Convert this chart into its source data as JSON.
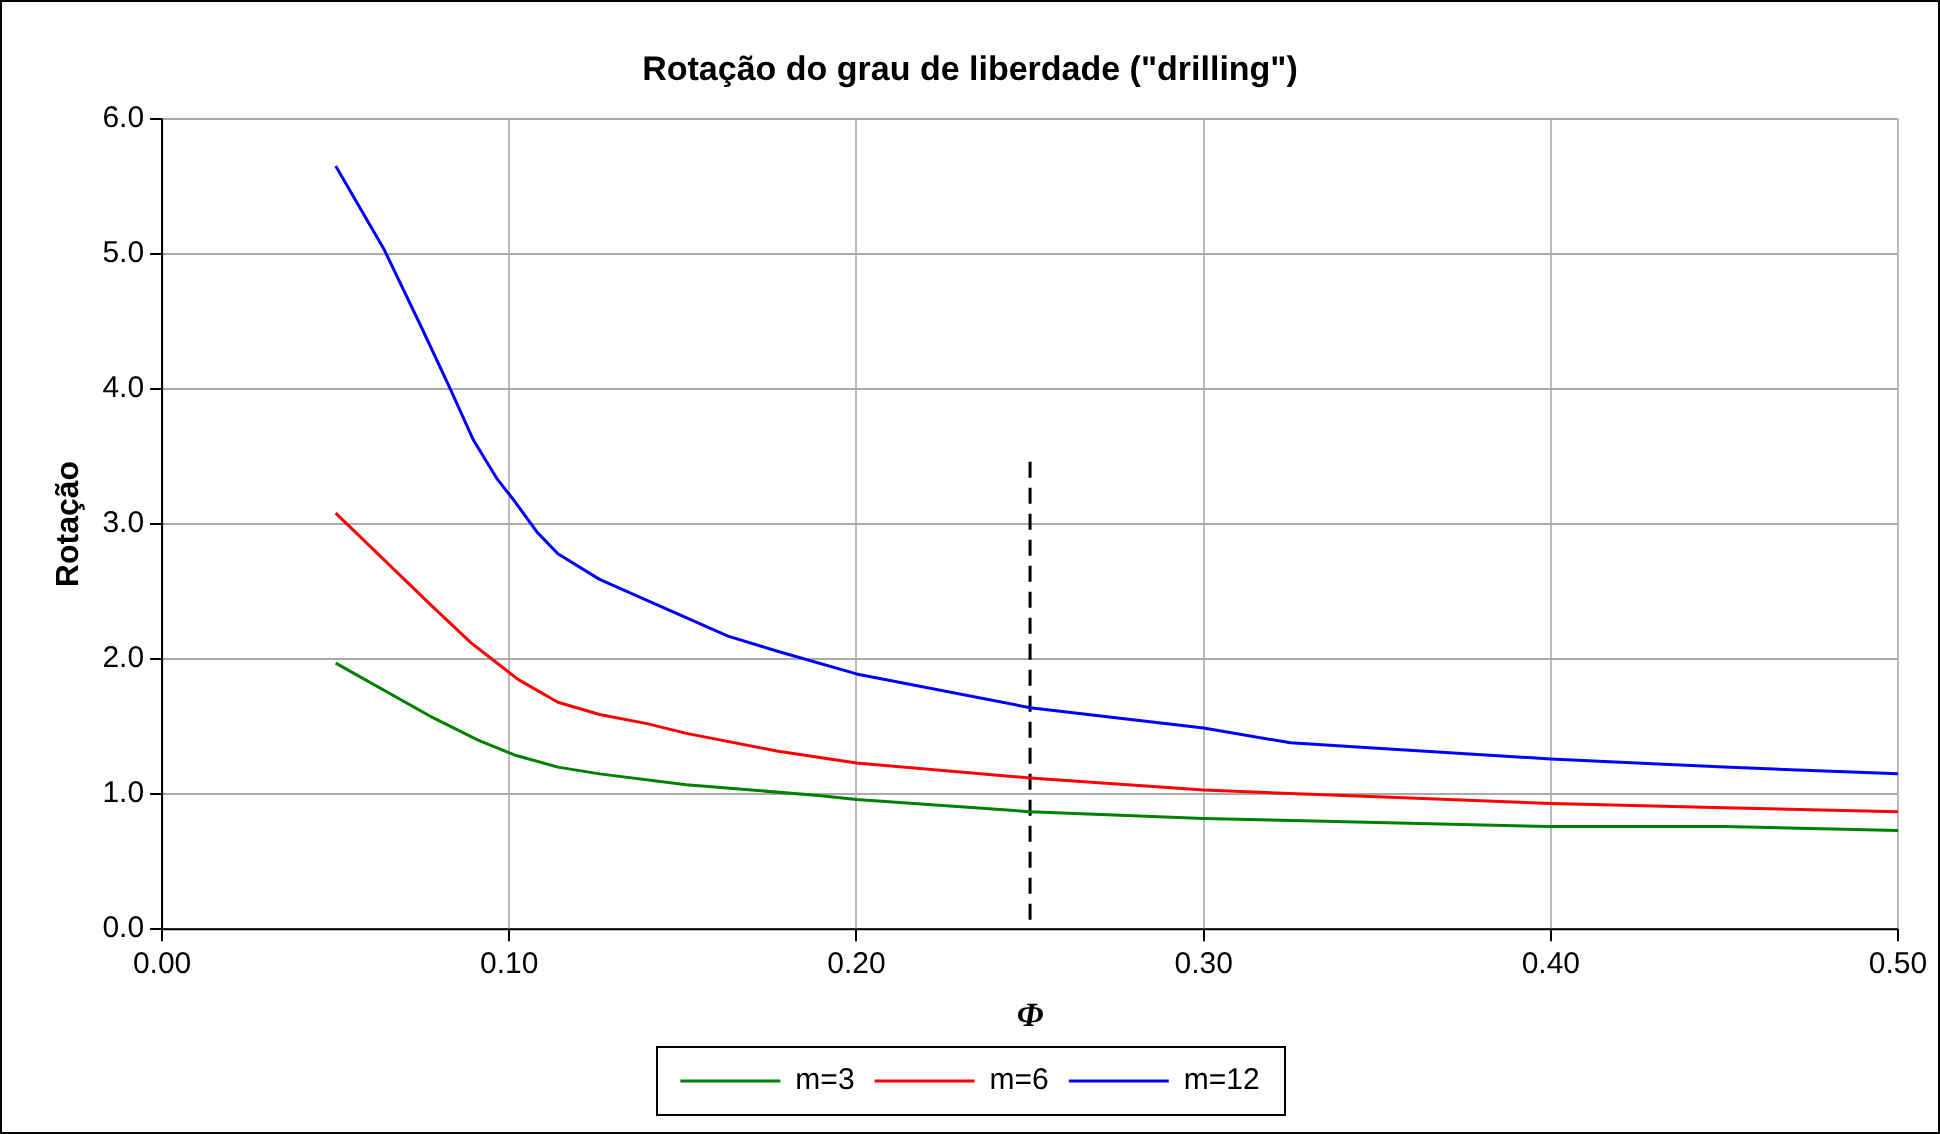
{
  "chart_data": {
    "type": "line",
    "title": "Rotação do grau de liberdade (\"drilling\")",
    "xlabel": "Φ",
    "ylabel": "Rotação",
    "xlim": [
      0,
      0.5
    ],
    "xticks": [
      {
        "value": 0,
        "label": "0.00"
      },
      {
        "value": 0.1,
        "label": "0.10"
      },
      {
        "value": 0.2,
        "label": "0.20"
      },
      {
        "value": 0.3,
        "label": "0.30"
      },
      {
        "value": 0.4,
        "label": "0.40"
      },
      {
        "value": 0.5,
        "label": "0.50"
      }
    ],
    "ylim": [
      0,
      6
    ],
    "yticks": [
      {
        "value": 0,
        "label": "0.0"
      },
      {
        "value": 1,
        "label": "1.0"
      },
      {
        "value": 2,
        "label": "2.0"
      },
      {
        "value": 3,
        "label": "3.0"
      },
      {
        "value": 4,
        "label": "4.0"
      },
      {
        "value": 5,
        "label": "5.0"
      },
      {
        "value": 6,
        "label": "6.0"
      }
    ],
    "grid": true,
    "legend": "bottom",
    "marker": "none",
    "line_style": "solid",
    "series": [
      {
        "name": "m=3",
        "color": "#008000",
        "x": [
          0.05,
          0.077,
          0.091,
          0.1015,
          0.114,
          0.126,
          0.151,
          0.189,
          0.2,
          0.25,
          0.3,
          0.35,
          0.4,
          0.45,
          0.5
        ],
        "values": [
          1.97,
          1.58,
          1.4,
          1.29,
          1.2,
          1.15,
          1.07,
          0.99,
          0.96,
          0.87,
          0.82,
          0.79,
          0.76,
          0.76,
          0.73
        ]
      },
      {
        "name": "m=6",
        "color": "#ff0000",
        "x": [
          0.05,
          0.077,
          0.089,
          0.097,
          0.1025,
          0.114,
          0.126,
          0.14,
          0.151,
          0.177,
          0.2,
          0.25,
          0.3,
          0.35,
          0.4,
          0.45,
          0.5
        ],
        "values": [
          3.08,
          2.41,
          2.12,
          1.96,
          1.85,
          1.68,
          1.59,
          1.52,
          1.45,
          1.32,
          1.23,
          1.12,
          1.03,
          0.98,
          0.93,
          0.9,
          0.87
        ]
      },
      {
        "name": "m=12",
        "color": "#0000ff",
        "x": [
          0.05,
          0.064,
          0.075,
          0.083,
          0.0897,
          0.0966,
          0.1015,
          0.108,
          0.114,
          0.126,
          0.14,
          0.163,
          0.177,
          0.2,
          0.25,
          0.3,
          0.325,
          0.35,
          0.4,
          0.45,
          0.5
        ],
        "values": [
          5.65,
          5.03,
          4.44,
          4.0,
          3.62,
          3.33,
          3.17,
          2.94,
          2.78,
          2.59,
          2.43,
          2.17,
          2.06,
          1.89,
          1.64,
          1.49,
          1.38,
          1.34,
          1.26,
          1.2,
          1.15
        ]
      },
      {
        "color": "#000000",
        "line_style": "dashed",
        "x": [
          0.25,
          0.25
        ],
        "values": [
          0,
          3.46
        ]
      }
    ]
  }
}
